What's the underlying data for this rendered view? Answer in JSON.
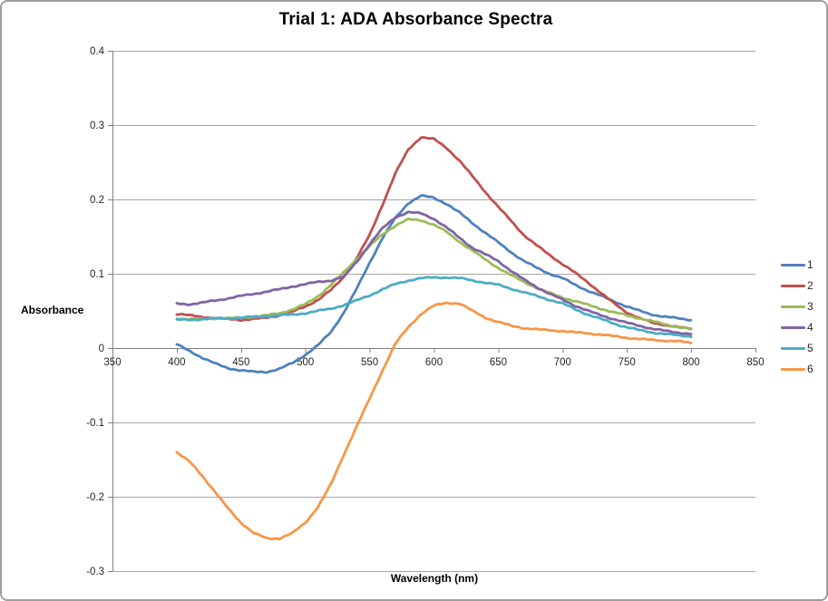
{
  "chart_data": {
    "type": "line",
    "title": "Trial 1: ADA Absorbance Spectra",
    "xlabel": "Wavelength (nm)",
    "ylabel": "Absorbance",
    "xlim": [
      350,
      850
    ],
    "ylim": [
      -0.3,
      0.4
    ],
    "x_ticks": [
      350,
      400,
      450,
      500,
      550,
      600,
      650,
      700,
      750,
      800,
      850
    ],
    "y_ticks": [
      0.4,
      0.3,
      0.2,
      0.1,
      0,
      -0.1,
      -0.2,
      -0.3
    ],
    "grid": "horizontal",
    "legend_position": "right",
    "x_start": 400,
    "x_step": 10,
    "series": [
      {
        "name": "1",
        "color": "#4F81BD",
        "values": [
          0.005,
          -0.004,
          -0.013,
          -0.021,
          -0.027,
          -0.03,
          -0.032,
          -0.032,
          -0.028,
          -0.02,
          -0.009,
          0.004,
          0.022,
          0.048,
          0.08,
          0.115,
          0.148,
          0.175,
          0.195,
          0.205,
          0.202,
          0.194,
          0.182,
          0.168,
          0.155,
          0.142,
          0.129,
          0.117,
          0.108,
          0.1,
          0.094,
          0.085,
          0.077,
          0.07,
          0.063,
          0.056,
          0.05,
          0.045,
          0.042,
          0.04,
          0.038
        ]
      },
      {
        "name": "2",
        "color": "#C0504D",
        "values": [
          0.046,
          0.044,
          0.042,
          0.04,
          0.039,
          0.038,
          0.039,
          0.041,
          0.044,
          0.049,
          0.056,
          0.065,
          0.078,
          0.096,
          0.121,
          0.152,
          0.193,
          0.235,
          0.267,
          0.284,
          0.281,
          0.269,
          0.252,
          0.231,
          0.21,
          0.19,
          0.171,
          0.152,
          0.138,
          0.125,
          0.113,
          0.101,
          0.088,
          0.074,
          0.06,
          0.048,
          0.04,
          0.034,
          0.031,
          0.028,
          0.026
        ]
      },
      {
        "name": "3",
        "color": "#9BBB59",
        "values": [
          0.04,
          0.039,
          0.039,
          0.04,
          0.04,
          0.041,
          0.042,
          0.044,
          0.047,
          0.052,
          0.059,
          0.07,
          0.085,
          0.102,
          0.12,
          0.137,
          0.153,
          0.165,
          0.173,
          0.172,
          0.166,
          0.156,
          0.143,
          0.131,
          0.119,
          0.108,
          0.098,
          0.089,
          0.081,
          0.074,
          0.068,
          0.063,
          0.058,
          0.053,
          0.048,
          0.044,
          0.04,
          0.036,
          0.032,
          0.028,
          0.026
        ]
      },
      {
        "name": "4",
        "color": "#8064A2",
        "values": [
          0.06,
          0.059,
          0.061,
          0.064,
          0.067,
          0.07,
          0.073,
          0.076,
          0.079,
          0.083,
          0.086,
          0.089,
          0.091,
          0.096,
          0.116,
          0.14,
          0.161,
          0.176,
          0.183,
          0.181,
          0.174,
          0.162,
          0.148,
          0.135,
          0.126,
          0.117,
          0.104,
          0.092,
          0.082,
          0.073,
          0.065,
          0.057,
          0.05,
          0.044,
          0.039,
          0.034,
          0.03,
          0.026,
          0.023,
          0.021,
          0.019
        ]
      },
      {
        "name": "5",
        "color": "#4BACC6",
        "values": [
          0.038,
          0.038,
          0.039,
          0.04,
          0.04,
          0.041,
          0.042,
          0.043,
          0.044,
          0.045,
          0.047,
          0.05,
          0.053,
          0.058,
          0.064,
          0.071,
          0.079,
          0.086,
          0.091,
          0.094,
          0.095,
          0.095,
          0.094,
          0.091,
          0.088,
          0.085,
          0.08,
          0.075,
          0.07,
          0.065,
          0.06,
          0.052,
          0.045,
          0.039,
          0.033,
          0.028,
          0.024,
          0.021,
          0.019,
          0.017,
          0.016
        ]
      },
      {
        "name": "6",
        "color": "#F79646",
        "values": [
          -0.14,
          -0.153,
          -0.172,
          -0.194,
          -0.216,
          -0.235,
          -0.249,
          -0.256,
          -0.256,
          -0.249,
          -0.235,
          -0.213,
          -0.183,
          -0.143,
          -0.105,
          -0.068,
          -0.03,
          0.006,
          0.028,
          0.046,
          0.057,
          0.061,
          0.06,
          0.05,
          0.041,
          0.035,
          0.03,
          0.027,
          0.025,
          0.024,
          0.023,
          0.021,
          0.02,
          0.018,
          0.016,
          0.014,
          0.012,
          0.011,
          0.01,
          0.009,
          0.007
        ]
      }
    ]
  },
  "style": {
    "background": "#FFFFFF",
    "border": "#9E9E9E",
    "gridline": "#A6A6A6",
    "axis": "#808080",
    "tick_label_color": "#262626",
    "title_color": "#000000"
  }
}
